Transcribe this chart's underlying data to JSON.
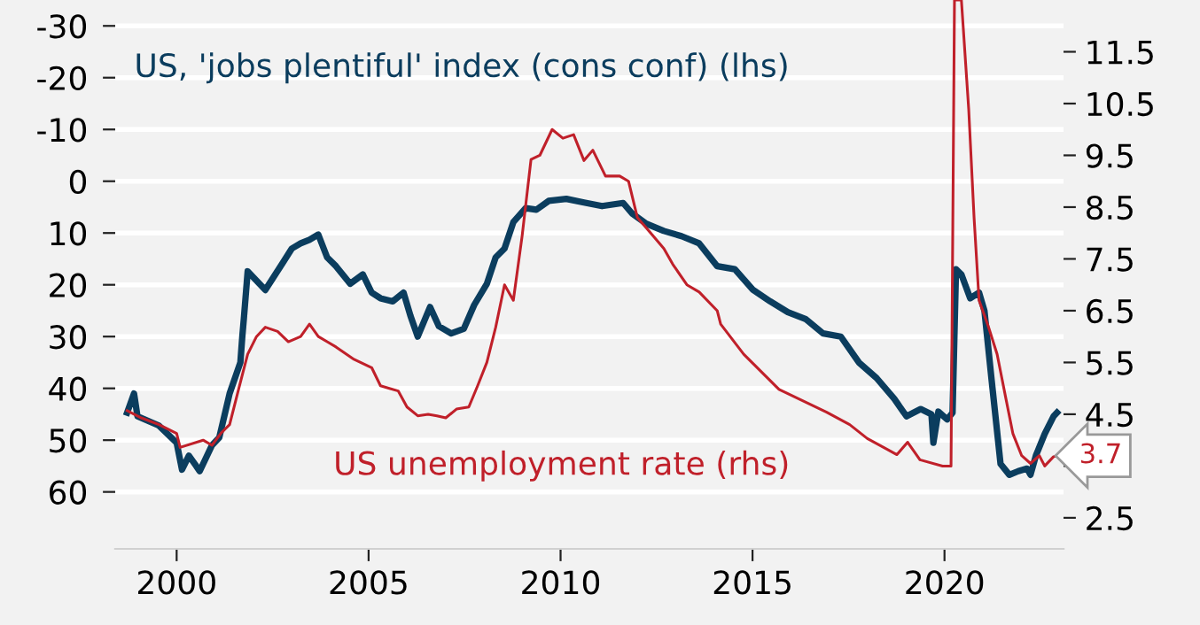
{
  "chart_data": {
    "type": "line",
    "xlim": [
      1998.4,
      2023.1
    ],
    "xticks": [
      2000,
      2005,
      2010,
      2015,
      2020
    ],
    "ylim": [
      71,
      -35
    ],
    "yticks": [
      -30,
      -20,
      -10,
      0,
      10,
      20,
      30,
      40,
      50,
      60
    ],
    "y2lim": [
      1.9,
      12.5
    ],
    "y2ticks": [
      2.5,
      {
        "value": 3.5,
        "label": null
      },
      4.5,
      5.5,
      6.5,
      7.5,
      8.5,
      9.5,
      10.5,
      11.5
    ],
    "grid": "y",
    "legend": false,
    "line_style": "solid",
    "marker": "none",
    "series": [
      {
        "name": "US, 'jobs plentiful' index (cons conf) (lhs)",
        "color": "#0b3d5e",
        "axis": "y",
        "x": [
          1998.71,
          1998.89,
          1998.98,
          1999.54,
          2000.0,
          2000.14,
          2000.32,
          2000.51,
          2000.6,
          2000.92,
          2001.11,
          2001.38,
          2001.66,
          2001.71,
          2001.75,
          2001.85,
          2002.31,
          2002.77,
          2003.0,
          2003.23,
          2003.46,
          2003.69,
          2003.92,
          2004.15,
          2004.52,
          2004.85,
          2005.08,
          2005.31,
          2005.63,
          2005.91,
          2006.09,
          2006.28,
          2006.6,
          2006.83,
          2007.15,
          2007.48,
          2007.75,
          2008.08,
          2008.31,
          2008.54,
          2008.77,
          2009.09,
          2009.37,
          2009.69,
          2010.15,
          2010.61,
          2011.08,
          2011.63,
          2011.86,
          2012.23,
          2012.69,
          2013.15,
          2013.61,
          2014.08,
          2014.54,
          2015.0,
          2015.46,
          2015.92,
          2016.38,
          2016.84,
          2017.3,
          2017.77,
          2018.23,
          2018.69,
          2019.01,
          2019.38,
          2019.66,
          2019.71,
          2019.84,
          2020.07,
          2020.21,
          2020.3,
          2020.44,
          2020.67,
          2020.9,
          2021.04,
          2021.23,
          2021.46,
          2021.69,
          2021.92,
          2022.15,
          2022.24,
          2022.38,
          2022.61,
          2022.84,
          2022.93
        ],
        "values": [
          44.7,
          41,
          45.4,
          47.2,
          50.5,
          55.7,
          53,
          55,
          56,
          51,
          49.5,
          41,
          35,
          30,
          26.6,
          17.4,
          21,
          15.7,
          13,
          12,
          11.3,
          10.3,
          14.7,
          16.4,
          19.8,
          18,
          21.5,
          22.6,
          23.2,
          21.5,
          26,
          30,
          24.3,
          28,
          29.4,
          28.5,
          23.9,
          19.8,
          14.7,
          13,
          7.9,
          5.2,
          5.5,
          3.8,
          3.4,
          4.1,
          4.8,
          4.2,
          6.2,
          8.2,
          9.6,
          10.6,
          12,
          16.4,
          17,
          20.9,
          23.2,
          25.3,
          26.6,
          29.4,
          30,
          35,
          38,
          42,
          45.4,
          44,
          45,
          50.5,
          44.5,
          46,
          44.7,
          17,
          18,
          22.6,
          21.5,
          25,
          38.6,
          54.6,
          56.7,
          56,
          55.5,
          56.7,
          53,
          48.8,
          45.4,
          44.7
        ]
      },
      {
        "name": "US unemployment rate (rhs)",
        "color": "#c0202a",
        "axis": "y2",
        "x": [
          1998.71,
          1999.08,
          1999.54,
          2000.0,
          2000.09,
          2000.69,
          2000.92,
          2001.15,
          2001.38,
          2001.62,
          2001.85,
          2002.08,
          2002.31,
          2002.63,
          2002.91,
          2003.23,
          2003.46,
          2003.69,
          2003.92,
          2004.15,
          2004.62,
          2005.08,
          2005.31,
          2005.54,
          2005.77,
          2006.0,
          2006.28,
          2006.55,
          2006.78,
          2007.01,
          2007.29,
          2007.61,
          2007.84,
          2008.08,
          2008.31,
          2008.54,
          2008.77,
          2009.0,
          2009.23,
          2009.46,
          2009.78,
          2010.06,
          2010.34,
          2010.61,
          2010.84,
          2011.17,
          2011.54,
          2011.77,
          2012.0,
          2012.23,
          2012.69,
          2012.92,
          2013.29,
          2013.61,
          2014.08,
          2014.17,
          2014.77,
          2015.69,
          2016.93,
          2017.53,
          2017.99,
          2018.76,
          2019.04,
          2019.36,
          2019.95,
          2020.17,
          2020.26,
          2020.44,
          2020.63,
          2020.77,
          2020.9,
          2021.14,
          2021.37,
          2021.6,
          2021.78,
          2022.01,
          2022.24,
          2022.47,
          2022.61,
          2022.84,
          2022.93
        ],
        "values": [
          4.57,
          4.43,
          4.3,
          4.13,
          3.86,
          4.0,
          3.9,
          4.13,
          4.3,
          5.0,
          5.66,
          6.0,
          6.18,
          6.1,
          5.9,
          6.0,
          6.24,
          6.0,
          5.9,
          5.8,
          5.56,
          5.4,
          5.05,
          5.0,
          4.95,
          4.64,
          4.47,
          4.5,
          4.47,
          4.43,
          4.6,
          4.64,
          5.05,
          5.5,
          6.18,
          7.0,
          6.7,
          7.95,
          9.42,
          9.5,
          10.0,
          9.83,
          9.9,
          9.4,
          9.6,
          9.1,
          9.1,
          9.0,
          8.3,
          8.1,
          7.7,
          7.4,
          7.0,
          6.86,
          6.5,
          6.24,
          5.66,
          4.98,
          4.54,
          4.3,
          4.03,
          3.72,
          3.96,
          3.62,
          3.5,
          3.5,
          12.5,
          12.5,
          10.4,
          8.3,
          6.7,
          6.2,
          5.66,
          4.8,
          4.13,
          3.7,
          3.55,
          3.7,
          3.5,
          3.68,
          3.7
        ],
        "value_labels": [
          null,
          null,
          null,
          null,
          null,
          null,
          null,
          null,
          null,
          null,
          null,
          null,
          null,
          null,
          null,
          null,
          null,
          null,
          null,
          null,
          null,
          null,
          null,
          null,
          null,
          null,
          null,
          null,
          null,
          null,
          null,
          null,
          null,
          null,
          null,
          null,
          null,
          null,
          null,
          null,
          null,
          null,
          null,
          null,
          null,
          null,
          null,
          null,
          null,
          null,
          null,
          null,
          null,
          null,
          null,
          null,
          null,
          null,
          null,
          null,
          null,
          null,
          null,
          null,
          null,
          null,
          null,
          null,
          null,
          null,
          null,
          null,
          null,
          null,
          null,
          null,
          null,
          null,
          null,
          null,
          "3.7"
        ]
      }
    ]
  }
}
